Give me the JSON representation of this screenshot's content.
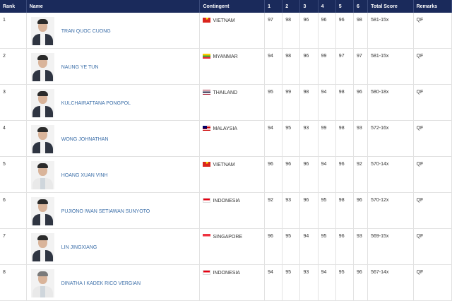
{
  "headers": {
    "rank": "Rank",
    "name": "Name",
    "contingent": "Contingent",
    "s1": "1",
    "s2": "2",
    "s3": "3",
    "s4": "4",
    "s5": "5",
    "s6": "6",
    "total": "Total Score",
    "remarks": "Remarks"
  },
  "rows": [
    {
      "rank": "1",
      "name": "TRAN QUOC CUONG",
      "flag": "vn",
      "contingent": "VIETNAM",
      "s": [
        "97",
        "98",
        "96",
        "96",
        "96",
        "98"
      ],
      "total": "581-15x",
      "remarks": "QF"
    },
    {
      "rank": "2",
      "name": "NAUNG YE TUN",
      "flag": "mm",
      "contingent": "MYANMAR",
      "s": [
        "94",
        "98",
        "96",
        "99",
        "97",
        "97"
      ],
      "total": "581-15x",
      "remarks": "QF"
    },
    {
      "rank": "3",
      "name": "KULCHAIRATTANA PONGPOL",
      "flag": "th",
      "contingent": "THAILAND",
      "s": [
        "95",
        "99",
        "98",
        "94",
        "98",
        "96"
      ],
      "total": "580-18x",
      "remarks": "QF"
    },
    {
      "rank": "4",
      "name": "WONG JOHNATHAN",
      "flag": "my",
      "contingent": "MALAYSIA",
      "s": [
        "94",
        "95",
        "93",
        "99",
        "98",
        "93"
      ],
      "total": "572-16x",
      "remarks": "QF"
    },
    {
      "rank": "5",
      "name": "HOANG XUAN VINH",
      "flag": "vn",
      "contingent": "VIETNAM",
      "s": [
        "96",
        "96",
        "96",
        "94",
        "96",
        "92"
      ],
      "total": "570-14x",
      "remarks": "QF"
    },
    {
      "rank": "6",
      "name": "PUJIONO IWAN SETIAWAN SUNYOTO",
      "flag": "id",
      "contingent": "INDONESIA",
      "s": [
        "92",
        "93",
        "96",
        "95",
        "98",
        "96"
      ],
      "total": "570-12x",
      "remarks": "QF"
    },
    {
      "rank": "7",
      "name": "LIN JINGXIANG",
      "flag": "sg",
      "contingent": "SINGAPORE",
      "s": [
        "96",
        "95",
        "94",
        "95",
        "96",
        "93"
      ],
      "total": "569-15x",
      "remarks": "QF"
    },
    {
      "rank": "8",
      "name": "DINATHA I KADEK RICO VERGIAN",
      "flag": "id",
      "contingent": "INDONESIA",
      "s": [
        "94",
        "95",
        "93",
        "94",
        "95",
        "96"
      ],
      "total": "567-14x",
      "remarks": "QF"
    }
  ]
}
